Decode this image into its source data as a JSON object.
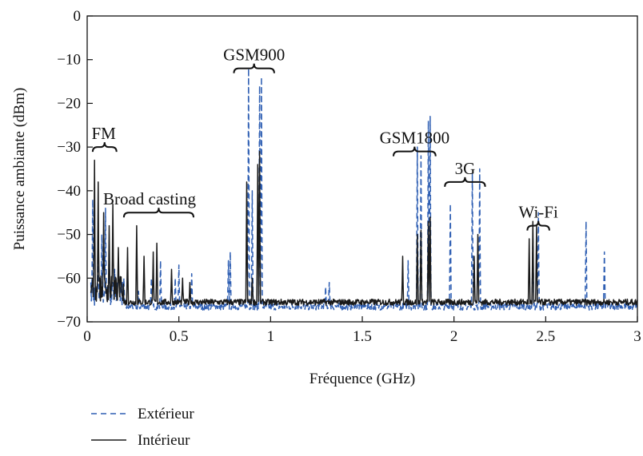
{
  "chart_data": {
    "type": "line",
    "title": "",
    "xlabel": "Fréquence (GHz)",
    "ylabel": "Puissance ambiante (dBm)",
    "xlim": [
      0,
      3
    ],
    "ylim": [
      -70,
      0
    ],
    "x_ticks": [
      0,
      0.5,
      1,
      1.5,
      2,
      2.5,
      3
    ],
    "x_tick_labels": [
      "0",
      "0.5",
      "1",
      "1.5",
      "2",
      "2.5",
      "3"
    ],
    "y_ticks": [
      0,
      -10,
      -20,
      -30,
      -40,
      -50,
      -60,
      -70
    ],
    "y_tick_labels": [
      "0",
      "−10",
      "−20",
      "−30",
      "−40",
      "−50",
      "−60",
      "−70"
    ],
    "grid": false,
    "legend_position": "bottom-left",
    "baseline_dbm": {
      "exterieur": -66.5,
      "interieur": -65.5
    },
    "colors": {
      "exterieur": "#2f5fb3",
      "interieur": "#1a1a1a"
    },
    "series": [
      {
        "name": "Extérieur",
        "style": "dashed",
        "peaks": [
          [
            0.03,
            -42
          ],
          [
            0.06,
            -55
          ],
          [
            0.08,
            -50
          ],
          [
            0.1,
            -44
          ],
          [
            0.12,
            -52
          ],
          [
            0.15,
            -58
          ],
          [
            0.2,
            -60
          ],
          [
            0.28,
            -63
          ],
          [
            0.35,
            -60
          ],
          [
            0.4,
            -56
          ],
          [
            0.48,
            -60
          ],
          [
            0.5,
            -57
          ],
          [
            0.57,
            -59
          ],
          [
            0.77,
            -56
          ],
          [
            0.78,
            -54
          ],
          [
            0.88,
            -12
          ],
          [
            0.9,
            -40
          ],
          [
            0.94,
            -16
          ],
          [
            0.95,
            -14
          ],
          [
            1.3,
            -62
          ],
          [
            1.32,
            -61
          ],
          [
            1.75,
            -56
          ],
          [
            1.8,
            -30
          ],
          [
            1.82,
            -32
          ],
          [
            1.86,
            -24
          ],
          [
            1.87,
            -23
          ],
          [
            1.98,
            -43
          ],
          [
            2.1,
            -36
          ],
          [
            2.14,
            -35
          ],
          [
            2.43,
            -50
          ],
          [
            2.46,
            -45
          ],
          [
            2.72,
            -47
          ],
          [
            2.82,
            -54
          ]
        ]
      },
      {
        "name": "Intérieur",
        "style": "solid",
        "peaks": [
          [
            0.04,
            -33
          ],
          [
            0.06,
            -38
          ],
          [
            0.09,
            -45
          ],
          [
            0.12,
            -48
          ],
          [
            0.14,
            -43
          ],
          [
            0.17,
            -53
          ],
          [
            0.22,
            -53
          ],
          [
            0.27,
            -48
          ],
          [
            0.31,
            -55
          ],
          [
            0.36,
            -54
          ],
          [
            0.38,
            -52
          ],
          [
            0.46,
            -58
          ],
          [
            0.52,
            -60
          ],
          [
            0.56,
            -61
          ],
          [
            0.87,
            -38
          ],
          [
            0.9,
            -60
          ],
          [
            0.93,
            -34
          ],
          [
            0.94,
            -31
          ],
          [
            1.72,
            -55
          ],
          [
            1.8,
            -50
          ],
          [
            1.82,
            -49
          ],
          [
            1.86,
            -47
          ],
          [
            1.87,
            -46
          ],
          [
            2.11,
            -55
          ],
          [
            2.13,
            -50
          ],
          [
            2.41,
            -51
          ],
          [
            2.43,
            -47
          ],
          [
            2.45,
            -48
          ]
        ]
      }
    ],
    "annotations": [
      {
        "label": "FM",
        "x_range": [
          0.03,
          0.16
        ]
      },
      {
        "label": "Broad casting",
        "x_range": [
          0.2,
          0.58
        ]
      },
      {
        "label": "GSM900",
        "x_range": [
          0.8,
          1.02
        ]
      },
      {
        "label": "GSM1800",
        "x_range": [
          1.67,
          1.9
        ]
      },
      {
        "label": "3G",
        "x_range": [
          1.95,
          2.17
        ]
      },
      {
        "label": "Wi-Fi",
        "x_range": [
          2.4,
          2.52
        ]
      }
    ]
  }
}
